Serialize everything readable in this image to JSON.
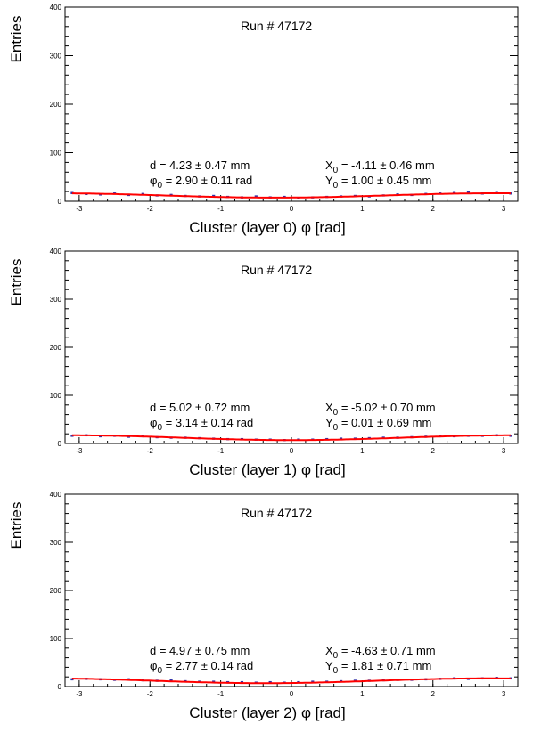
{
  "chart_data": [
    {
      "type": "scatter",
      "run_label": "Run # 47172",
      "ylabel": "Entries",
      "xlabel": "Cluster (layer 0) φ [rad]",
      "xlim": [
        -3.2,
        3.2
      ],
      "ylim": [
        0,
        400
      ],
      "x_ticks": [
        -3,
        -2,
        -1,
        0,
        1,
        2,
        3
      ],
      "y_ticks": [
        0,
        100,
        200,
        300,
        400
      ],
      "annotations": {
        "d": "d = 4.23 ± 0.47 mm",
        "phi0_sym": "φ",
        "phi0_sub": "0",
        "phi0_rest": " = 2.90 ± 0.11 rad",
        "x0_sym": "X",
        "x0_sub": "0",
        "x0_rest": " = -4.11 ± 0.46 mm",
        "y0_sym": "Y",
        "y0_sub": "0",
        "y0_rest": " = 1.00 ± 0.45 mm"
      },
      "fit": {
        "baseline": 12.0,
        "amplitude": 4.5,
        "phase": 2.9,
        "color": "#ff0000"
      },
      "points_color": "#3333aa",
      "points": {
        "x": [
          -3.1,
          -2.9,
          -2.7,
          -2.5,
          -2.3,
          -2.1,
          -1.9,
          -1.7,
          -1.5,
          -1.3,
          -1.1,
          -0.9,
          -0.7,
          -0.5,
          -0.3,
          -0.1,
          0.1,
          0.3,
          0.5,
          0.7,
          0.9,
          1.1,
          1.3,
          1.5,
          1.7,
          1.9,
          2.1,
          2.3,
          2.5,
          2.7,
          2.9,
          3.1
        ],
        "y": [
          17,
          15,
          14,
          16,
          13,
          15,
          12,
          13,
          11,
          10,
          11,
          9,
          8,
          10,
          8,
          9,
          7,
          8,
          9,
          10,
          11,
          10,
          12,
          14,
          13,
          15,
          16,
          17,
          18,
          16,
          17,
          16
        ]
      }
    },
    {
      "type": "scatter",
      "run_label": "Run # 47172",
      "ylabel": "Entries",
      "xlabel": "Cluster (layer 1) φ [rad]",
      "xlim": [
        -3.2,
        3.2
      ],
      "ylim": [
        0,
        400
      ],
      "x_ticks": [
        -3,
        -2,
        -1,
        0,
        1,
        2,
        3
      ],
      "y_ticks": [
        0,
        100,
        200,
        300,
        400
      ],
      "annotations": {
        "d": "d = 5.02 ± 0.72 mm",
        "phi0_sym": "φ",
        "phi0_sub": "0",
        "phi0_rest": " = 3.14 ± 0.14 rad",
        "x0_sym": "X",
        "x0_sub": "0",
        "x0_rest": " = -5.02 ± 0.70 mm",
        "y0_sym": "Y",
        "y0_sub": "0",
        "y0_rest": " = 0.01 ± 0.69 mm"
      },
      "fit": {
        "baseline": 12.0,
        "amplitude": 5.0,
        "phase": 3.14,
        "color": "#ff0000"
      },
      "points_color": "#3333aa",
      "points": {
        "x": [
          -3.1,
          -2.9,
          -2.7,
          -2.5,
          -2.3,
          -2.1,
          -1.9,
          -1.7,
          -1.5,
          -1.3,
          -1.1,
          -0.9,
          -0.7,
          -0.5,
          -0.3,
          -0.1,
          0.1,
          0.3,
          0.5,
          0.7,
          0.9,
          1.1,
          1.3,
          1.5,
          1.7,
          1.9,
          2.1,
          2.3,
          2.5,
          2.7,
          2.9,
          3.1
        ],
        "y": [
          16,
          17,
          15,
          16,
          14,
          15,
          13,
          12,
          12,
          11,
          10,
          9,
          9,
          8,
          8,
          7,
          8,
          8,
          9,
          10,
          10,
          11,
          12,
          12,
          13,
          14,
          15,
          15,
          16,
          16,
          17,
          16
        ]
      }
    },
    {
      "type": "scatter",
      "run_label": "Run # 47172",
      "ylabel": "Entries",
      "xlabel": "Cluster (layer 2) φ [rad]",
      "xlim": [
        -3.2,
        3.2
      ],
      "ylim": [
        0,
        400
      ],
      "x_ticks": [
        -3,
        -2,
        -1,
        0,
        1,
        2,
        3
      ],
      "y_ticks": [
        0,
        100,
        200,
        300,
        400
      ],
      "annotations": {
        "d": "d = 4.97 ± 0.75 mm",
        "phi0_sym": "φ",
        "phi0_sub": "0",
        "phi0_rest": " = 2.77 ± 0.14 rad",
        "x0_sym": "X",
        "x0_sub": "0",
        "x0_rest": " = -4.63 ± 0.71 mm",
        "y0_sym": "Y",
        "y0_sub": "0",
        "y0_rest": " = 1.81 ± 0.71 mm"
      },
      "fit": {
        "baseline": 12.0,
        "amplitude": 5.0,
        "phase": 2.77,
        "color": "#ff0000"
      },
      "points_color": "#3333aa",
      "points": {
        "x": [
          -3.1,
          -2.9,
          -2.7,
          -2.5,
          -2.3,
          -2.1,
          -1.9,
          -1.7,
          -1.5,
          -1.3,
          -1.1,
          -0.9,
          -0.7,
          -0.5,
          -0.3,
          -0.1,
          0.1,
          0.3,
          0.5,
          0.7,
          0.9,
          1.1,
          1.3,
          1.5,
          1.7,
          1.9,
          2.1,
          2.3,
          2.5,
          2.7,
          2.9,
          3.1
        ],
        "y": [
          15,
          16,
          15,
          14,
          15,
          13,
          12,
          13,
          11,
          10,
          10,
          9,
          9,
          8,
          9,
          8,
          9,
          10,
          10,
          11,
          12,
          12,
          13,
          14,
          14,
          15,
          16,
          17,
          16,
          17,
          18,
          17
        ]
      }
    }
  ]
}
